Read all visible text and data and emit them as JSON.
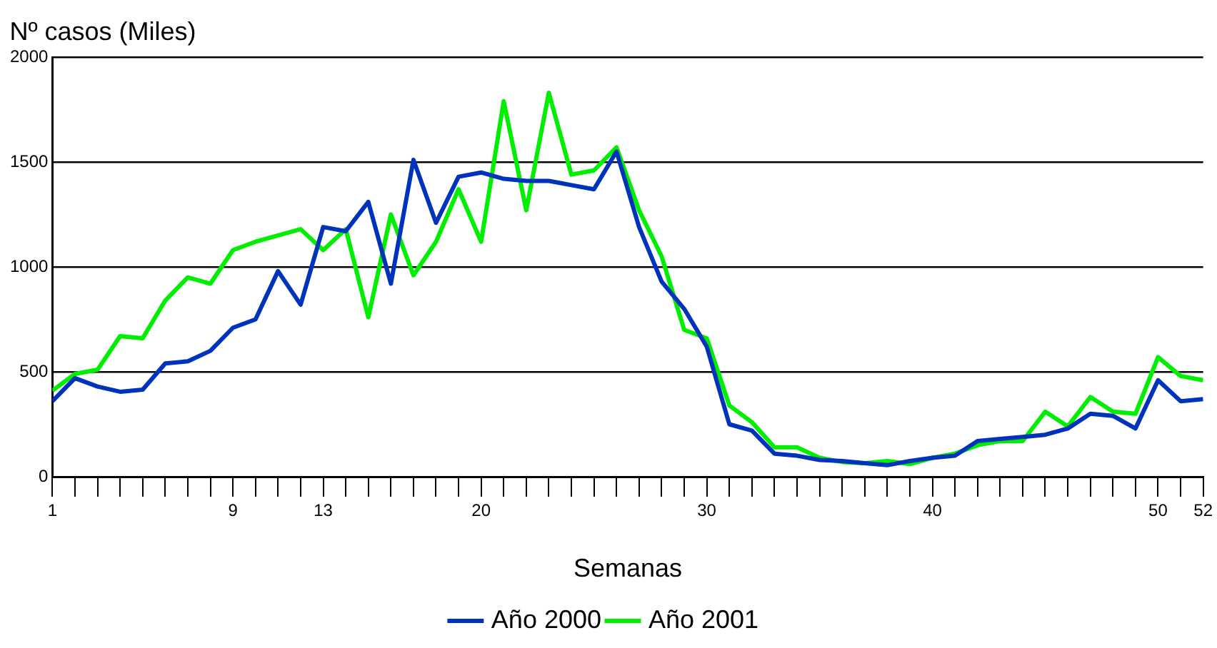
{
  "chart_data": {
    "type": "line",
    "ylabel": "Nº casos (Miles)",
    "xlabel": "Semanas",
    "x": [
      1,
      2,
      3,
      4,
      5,
      6,
      7,
      8,
      9,
      10,
      11,
      12,
      13,
      14,
      15,
      16,
      17,
      18,
      19,
      20,
      21,
      22,
      23,
      24,
      25,
      26,
      27,
      28,
      29,
      30,
      31,
      32,
      33,
      34,
      35,
      36,
      37,
      38,
      39,
      40,
      41,
      42,
      43,
      44,
      45,
      46,
      47,
      48,
      49,
      50,
      51,
      52
    ],
    "series": [
      {
        "name": "Año 2000",
        "color": "#0033bb",
        "values": [
          360,
          470,
          430,
          405,
          415,
          540,
          550,
          600,
          710,
          750,
          980,
          820,
          1190,
          1170,
          1310,
          920,
          1510,
          1210,
          1430,
          1450,
          1420,
          1410,
          1410,
          1390,
          1370,
          1550,
          1190,
          930,
          800,
          620,
          250,
          220,
          110,
          100,
          80,
          75,
          65,
          55,
          75,
          90,
          100,
          170,
          180,
          190,
          200,
          230,
          300,
          290,
          230,
          460,
          360,
          370
        ]
      },
      {
        "name": "Año 2001",
        "color": "#00ee00",
        "values": [
          410,
          490,
          510,
          670,
          660,
          840,
          950,
          920,
          1080,
          1120,
          1150,
          1180,
          1080,
          1180,
          760,
          1250,
          960,
          1120,
          1370,
          1120,
          1790,
          1270,
          1830,
          1440,
          1460,
          1570,
          1270,
          1050,
          700,
          660,
          340,
          260,
          140,
          140,
          90,
          70,
          65,
          75,
          60,
          90,
          110,
          150,
          170,
          170,
          310,
          240,
          380,
          310,
          300,
          570,
          480,
          460
        ]
      }
    ],
    "xlim": [
      1,
      52
    ],
    "xticks": [
      1,
      {
        "value": 2,
        "label": null
      },
      {
        "value": 3,
        "label": null
      },
      {
        "value": 4,
        "label": null
      },
      {
        "value": 5,
        "label": null
      },
      {
        "value": 6,
        "label": null
      },
      {
        "value": 7,
        "label": null
      },
      {
        "value": 8,
        "label": null
      },
      9,
      {
        "value": 10,
        "label": null
      },
      {
        "value": 11,
        "label": null
      },
      {
        "value": 12,
        "label": null
      },
      13,
      {
        "value": 14,
        "label": null
      },
      {
        "value": 15,
        "label": null
      },
      {
        "value": 16,
        "label": null
      },
      {
        "value": 17,
        "label": null
      },
      {
        "value": 18,
        "label": null
      },
      {
        "value": 19,
        "label": null
      },
      20,
      {
        "value": 21,
        "label": null
      },
      {
        "value": 22,
        "label": null
      },
      {
        "value": 23,
        "label": null
      },
      {
        "value": 24,
        "label": null
      },
      {
        "value": 25,
        "label": null
      },
      {
        "value": 26,
        "label": null
      },
      {
        "value": 27,
        "label": null
      },
      {
        "value": 28,
        "label": null
      },
      {
        "value": 29,
        "label": null
      },
      30,
      {
        "value": 31,
        "label": null
      },
      {
        "value": 32,
        "label": null
      },
      {
        "value": 33,
        "label": null
      },
      {
        "value": 34,
        "label": null
      },
      {
        "value": 35,
        "label": null
      },
      {
        "value": 36,
        "label": null
      },
      {
        "value": 37,
        "label": null
      },
      {
        "value": 38,
        "label": null
      },
      {
        "value": 39,
        "label": null
      },
      40,
      {
        "value": 41,
        "label": null
      },
      {
        "value": 42,
        "label": null
      },
      {
        "value": 43,
        "label": null
      },
      {
        "value": 44,
        "label": null
      },
      {
        "value": 45,
        "label": null
      },
      {
        "value": 46,
        "label": null
      },
      {
        "value": 47,
        "label": null
      },
      {
        "value": 48,
        "label": null
      },
      {
        "value": 49,
        "label": null
      },
      50,
      {
        "value": 51,
        "label": null
      },
      52
    ],
    "ylim": [
      0,
      2000
    ],
    "yticks": [
      0,
      500,
      1000,
      1500,
      2000
    ],
    "grid": "y",
    "legend": "bottom",
    "marker": "none",
    "line_style": "solid"
  }
}
